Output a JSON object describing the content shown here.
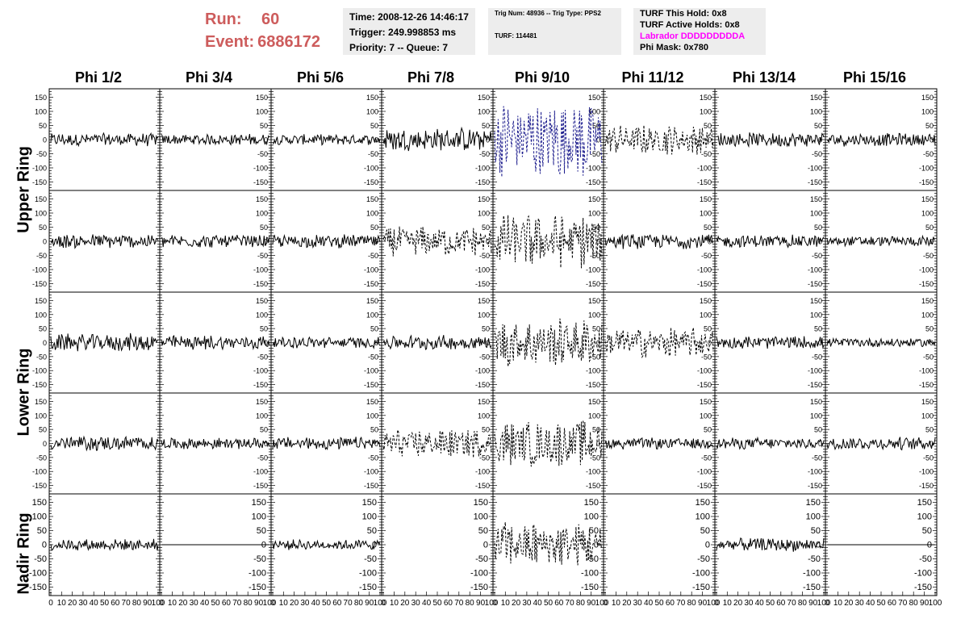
{
  "header": {
    "run_label": "Run:",
    "run_value": "60",
    "event_label": "Event:",
    "event_value": "6886172",
    "time": "Time: 2008-12-26 14:46:17",
    "trigger": "Trigger: 249.998853 ms",
    "priority": "Priority: 7 -- Queue: 7",
    "trig_num": "Trig Num: 48936 -- Trig Type: PPS2",
    "turf": "TURF: 114481",
    "turf_hold": "TURF This Hold: 0x8",
    "turf_active": "TURF Active Holds: 0x8",
    "labrador": "Labrador DDDDDDDDDA",
    "phi_mask": "Phi Mask: 0x780"
  },
  "colors": {
    "run": "#cd5c5c",
    "labrador": "#ff00ff",
    "highlight_trace": "#1a1a8c",
    "trace": "#000000"
  },
  "chart_data": {
    "type": "line",
    "columns": [
      "Phi 1/2",
      "Phi 3/4",
      "Phi 5/6",
      "Phi 7/8",
      "Phi 9/10",
      "Phi 11/12",
      "Phi 13/14",
      "Phi 15/16"
    ],
    "rings": [
      "Upper Ring",
      "Lower Ring",
      "Nadir Ring"
    ],
    "ylim": [
      -180,
      180
    ],
    "yticks": [
      -150,
      -100,
      -50,
      0,
      50,
      100,
      150
    ],
    "xlim": [
      0,
      100
    ],
    "xticks": [
      0,
      10,
      20,
      30,
      40,
      50,
      60,
      70,
      80,
      90,
      100
    ],
    "xtick_labels": [
      "0",
      "10",
      "20",
      "30",
      "40",
      "50",
      "60",
      "70",
      "80",
      "90",
      "100"
    ],
    "panels": [
      {
        "row": 0,
        "amp": [
          25,
          22,
          20,
          45,
          150,
          55,
          28,
          25
        ],
        "style": [
          "solid",
          "solid",
          "solid",
          "solid",
          "dashed",
          "dashed",
          "solid",
          "solid"
        ]
      },
      {
        "row": 1,
        "amp": [
          28,
          25,
          25,
          55,
          100,
          28,
          25,
          20
        ],
        "style": [
          "solid",
          "solid",
          "solid",
          "dashed",
          "dashed",
          "solid",
          "solid",
          "solid"
        ]
      },
      {
        "row": 2,
        "amp": [
          35,
          28,
          22,
          28,
          90,
          55,
          25,
          18
        ],
        "style": [
          "solid",
          "solid",
          "solid",
          "solid",
          "dashed",
          "dashed",
          "solid",
          "solid"
        ]
      },
      {
        "row": 3,
        "amp": [
          28,
          22,
          25,
          55,
          85,
          22,
          22,
          25
        ],
        "style": [
          "solid",
          "solid",
          "solid",
          "dashed",
          "dashed",
          "solid",
          "solid",
          "solid"
        ]
      },
      {
        "row": 4,
        "amp": [
          22,
          0,
          20,
          null,
          85,
          null,
          25,
          0
        ],
        "style": [
          "solid",
          "solid",
          "solid",
          "none",
          "dashed",
          "none",
          "solid",
          "solid"
        ]
      }
    ]
  }
}
